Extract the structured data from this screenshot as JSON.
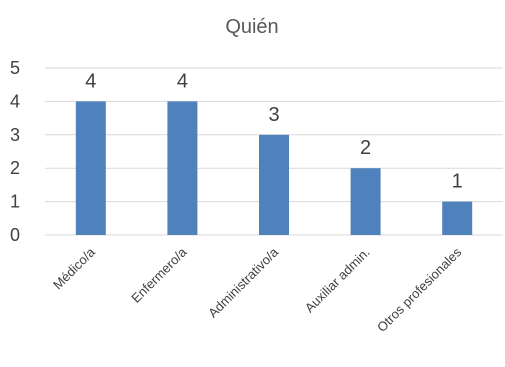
{
  "chart_data": {
    "type": "bar",
    "title": "Quién",
    "categories": [
      "Médico/a",
      "Enfermero/a",
      "Administrativo/a",
      "Auxiliar admin.",
      "Otros profesionales"
    ],
    "values": [
      4,
      4,
      3,
      2,
      1
    ],
    "ylim": [
      0,
      5
    ],
    "yticks": [
      0,
      1,
      2,
      3,
      4,
      5
    ],
    "grid": true,
    "bar_color": "#4f81bd",
    "data_labels": true
  }
}
